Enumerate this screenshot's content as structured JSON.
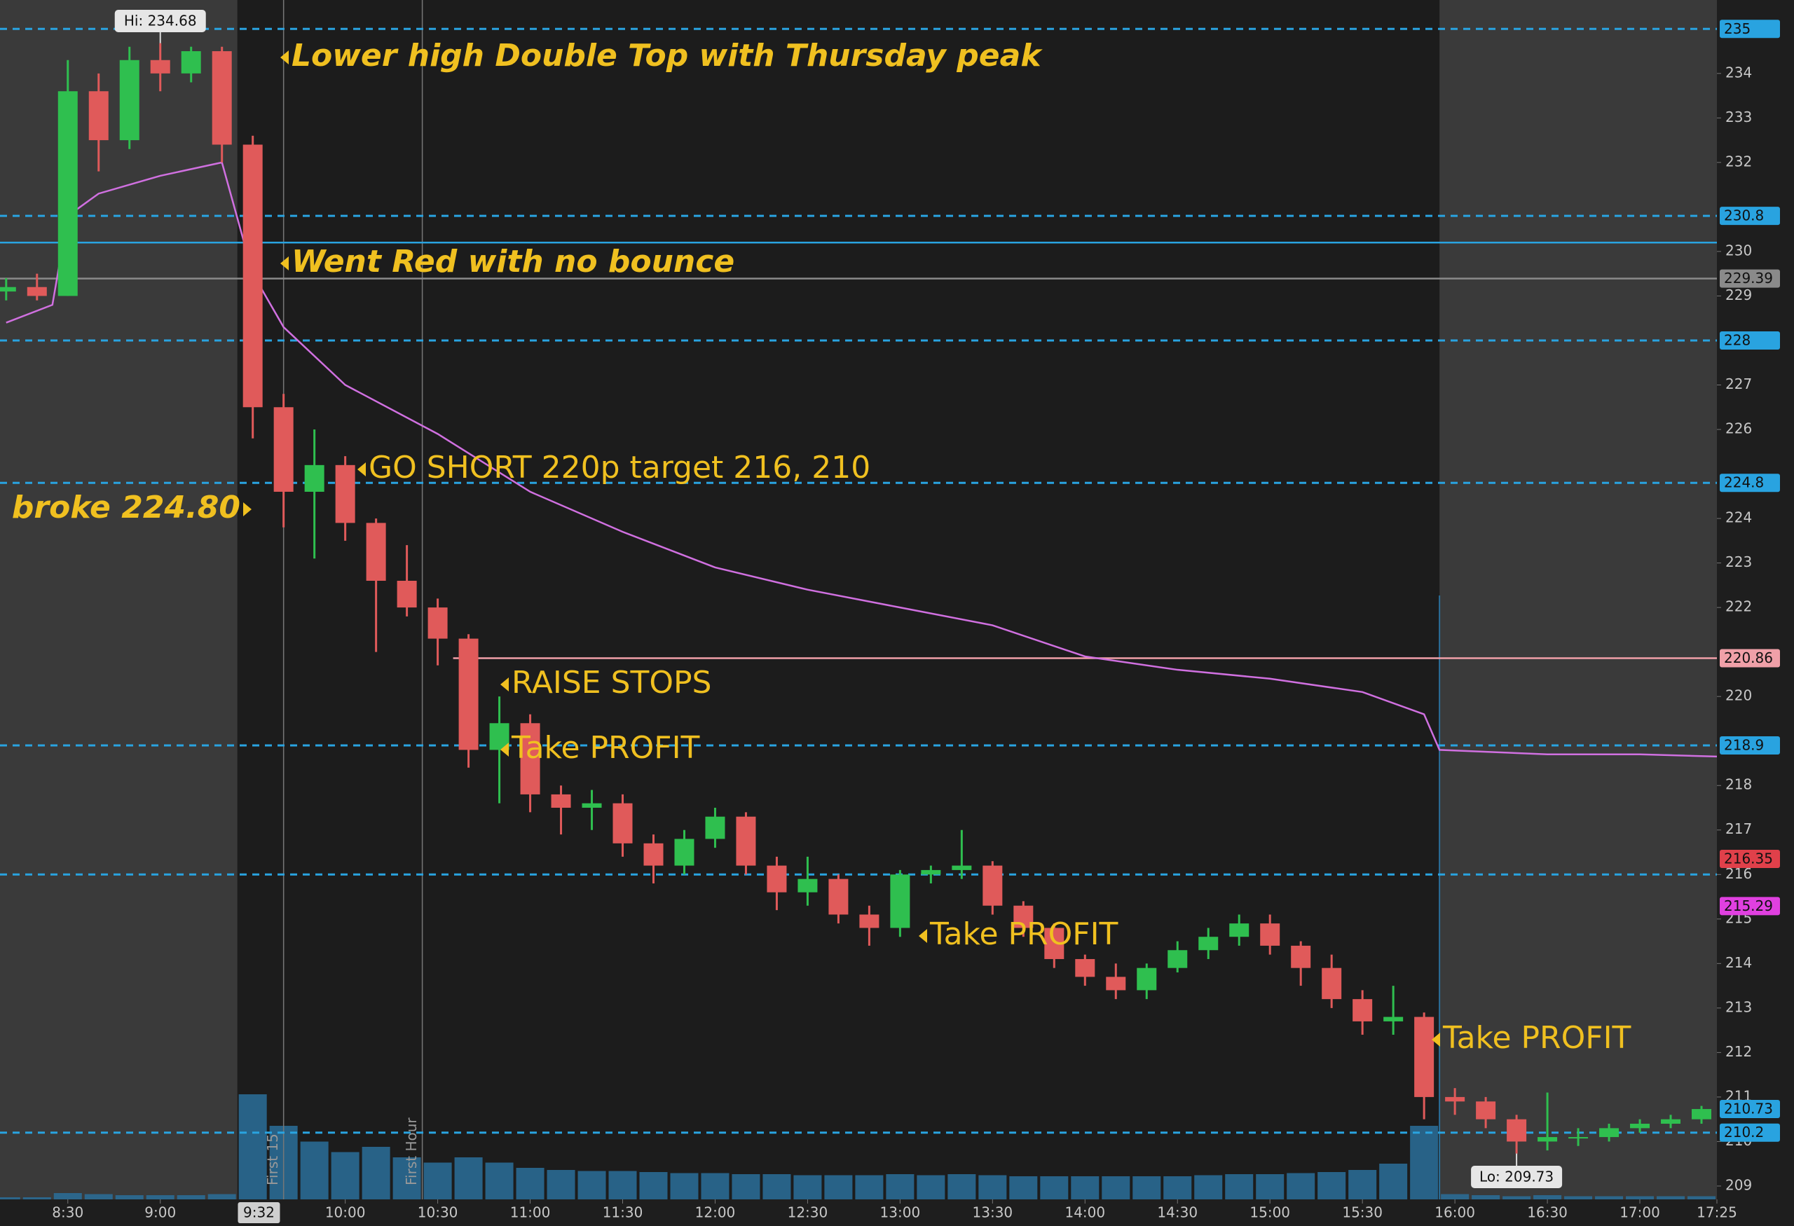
{
  "chart_data": {
    "type": "candlestick",
    "xlim": [
      "8:08",
      "17:25"
    ],
    "ylim": [
      208.7,
      235.65
    ],
    "xticks": [
      "8:30",
      "9:00",
      "10:00",
      "10:30",
      "11:00",
      "11:30",
      "12:00",
      "12:30",
      "13:00",
      "13:30",
      "14:00",
      "14:30",
      "15:00",
      "15:30",
      "16:00",
      "16:30",
      "17:00",
      "17:25"
    ],
    "yticks": [
      209,
      210,
      211,
      212,
      213,
      214,
      215,
      216,
      217,
      218,
      220,
      222,
      223,
      224,
      226,
      227,
      229,
      230,
      232,
      233,
      234
    ],
    "cursor": "9:32",
    "session": [
      "9:25",
      "15:55"
    ],
    "up_color": "#2fbf4f",
    "down_color": "#e05a5a",
    "x": [
      "8:10",
      "8:20",
      "8:30",
      "8:40",
      "8:50",
      "9:00",
      "9:10",
      "9:20",
      "9:30",
      "9:40",
      "9:50",
      "10:00",
      "10:10",
      "10:20",
      "10:30",
      "10:40",
      "10:50",
      "11:00",
      "11:10",
      "11:20",
      "11:30",
      "11:40",
      "11:50",
      "12:00",
      "12:10",
      "12:20",
      "12:30",
      "12:40",
      "12:50",
      "13:00",
      "13:10",
      "13:20",
      "13:30",
      "13:40",
      "13:50",
      "14:00",
      "14:10",
      "14:20",
      "14:30",
      "14:40",
      "14:50",
      "15:00",
      "15:10",
      "15:20",
      "15:30",
      "15:40",
      "15:50",
      "16:00",
      "16:10",
      "16:20",
      "16:30",
      "16:40",
      "16:50",
      "17:00",
      "17:10",
      "17:20"
    ],
    "open": [
      229.1,
      229.2,
      229.0,
      233.6,
      232.5,
      234.3,
      234.0,
      234.5,
      232.4,
      226.5,
      224.6,
      225.2,
      223.9,
      222.6,
      222.0,
      221.3,
      218.8,
      219.4,
      217.8,
      217.5,
      217.6,
      216.7,
      216.2,
      216.8,
      217.3,
      216.2,
      215.6,
      215.9,
      215.1,
      214.8,
      216.0,
      216.1,
      216.2,
      215.3,
      214.8,
      214.1,
      213.7,
      213.4,
      213.9,
      214.3,
      214.6,
      214.9,
      214.4,
      213.9,
      213.2,
      212.7,
      212.8,
      211.0,
      210.9,
      210.5,
      210.0,
      210.1,
      210.1,
      210.3,
      210.4,
      210.5
    ],
    "high": [
      229.4,
      229.5,
      234.3,
      234.0,
      234.6,
      234.68,
      234.6,
      234.6,
      232.6,
      226.8,
      226.0,
      225.4,
      224.0,
      223.4,
      222.2,
      221.4,
      220.0,
      219.6,
      218.0,
      217.9,
      217.8,
      216.9,
      217.0,
      217.5,
      217.4,
      216.4,
      216.4,
      216.0,
      215.3,
      216.1,
      216.2,
      217.0,
      216.3,
      215.4,
      214.9,
      214.2,
      214.0,
      214.0,
      214.5,
      214.8,
      215.1,
      215.1,
      214.5,
      214.2,
      213.4,
      213.5,
      212.9,
      211.2,
      211.0,
      210.6,
      211.1,
      210.3,
      210.4,
      210.5,
      210.6,
      210.8
    ],
    "low": [
      228.9,
      228.9,
      229.0,
      231.8,
      232.3,
      233.6,
      233.8,
      232.0,
      225.8,
      223.8,
      223.1,
      223.5,
      221.0,
      221.8,
      220.7,
      218.4,
      217.6,
      217.4,
      216.9,
      217.0,
      216.4,
      215.8,
      216.0,
      216.6,
      216.0,
      215.2,
      215.3,
      214.9,
      214.4,
      214.6,
      215.8,
      215.9,
      215.1,
      214.6,
      213.9,
      213.5,
      213.2,
      213.2,
      213.8,
      214.1,
      214.4,
      214.2,
      213.5,
      213.0,
      212.4,
      212.4,
      210.5,
      210.6,
      210.3,
      209.73,
      209.8,
      209.9,
      210.0,
      210.2,
      210.3,
      210.4
    ],
    "close": [
      229.2,
      229.0,
      233.6,
      232.5,
      234.3,
      234.0,
      234.5,
      232.4,
      226.5,
      224.6,
      225.2,
      223.9,
      222.6,
      222.0,
      221.3,
      218.8,
      219.4,
      217.8,
      217.5,
      217.6,
      216.7,
      216.2,
      216.8,
      217.3,
      216.2,
      215.6,
      215.9,
      215.1,
      214.8,
      216.0,
      216.1,
      216.2,
      215.3,
      214.8,
      214.1,
      213.7,
      213.4,
      213.9,
      214.3,
      214.6,
      214.9,
      214.4,
      213.9,
      213.2,
      212.7,
      212.8,
      211.0,
      210.9,
      210.5,
      210.0,
      210.1,
      210.1,
      210.3,
      210.4,
      210.5,
      210.73
    ],
    "volume": [
      2,
      2,
      6,
      5,
      4,
      4,
      4,
      5,
      100,
      70,
      55,
      45,
      50,
      40,
      35,
      40,
      35,
      30,
      28,
      27,
      27,
      26,
      25,
      25,
      24,
      24,
      23,
      23,
      23,
      24,
      23,
      24,
      23,
      22,
      22,
      22,
      22,
      22,
      22,
      23,
      24,
      24,
      25,
      26,
      28,
      34,
      70,
      5,
      4,
      3,
      4,
      3,
      3,
      3,
      3,
      3
    ],
    "volume_ylim": [
      0,
      110
    ],
    "volume_color": "#2a6f9a",
    "vwap": {
      "color": "#d070e0",
      "x": [
        "8:10",
        "8:25",
        "8:30",
        "8:40",
        "9:00",
        "9:20",
        "9:30",
        "9:40",
        "10:00",
        "10:30",
        "11:00",
        "11:30",
        "12:00",
        "12:30",
        "13:00",
        "13:30",
        "14:00",
        "14:30",
        "15:00",
        "15:30",
        "15:50",
        "15:55",
        "16:30",
        "17:00",
        "17:25"
      ],
      "values": [
        228.4,
        228.8,
        230.8,
        231.3,
        231.7,
        232.0,
        229.5,
        228.3,
        227.0,
        225.9,
        224.6,
        223.7,
        222.9,
        222.4,
        222.0,
        221.6,
        220.9,
        220.6,
        220.4,
        220.1,
        219.6,
        218.8,
        218.7,
        218.7,
        218.65
      ]
    },
    "levels": [
      {
        "value": 235,
        "color": "#29a3e0",
        "line": "dashed",
        "box": true
      },
      {
        "value": 230.8,
        "color": "#29a3e0",
        "line": "dashed",
        "box": true
      },
      {
        "value": 230.2,
        "color": "#29a3e0",
        "line": "solid",
        "box": false
      },
      {
        "value": 229.39,
        "color": "#8a8a8a",
        "line": "solid",
        "box": true
      },
      {
        "value": 228,
        "color": "#29a3e0",
        "line": "dashed",
        "box": true
      },
      {
        "value": 224.8,
        "color": "#29a3e0",
        "line": "dashed",
        "box": true
      },
      {
        "value": 220.86,
        "color": "#f0a0a8",
        "line": "solid",
        "box": true,
        "from": "10:35"
      },
      {
        "value": 218.9,
        "color": "#29a3e0",
        "line": "dashed",
        "box": true
      },
      {
        "value": 216,
        "color": "#29a3e0",
        "line": "dashed",
        "box": false
      },
      {
        "value": 216.35,
        "color": "#e0404a",
        "line": "none",
        "box": true
      },
      {
        "value": 215.29,
        "color": "#e040e0",
        "line": "none",
        "box": true
      },
      {
        "value": 210.73,
        "color": "#29a3e0",
        "line": "none",
        "box": true
      },
      {
        "value": 210.2,
        "color": "#29a3e0",
        "line": "dashed",
        "box": true
      }
    ],
    "markers": [
      {
        "x": "9:40",
        "label": "First 15"
      },
      {
        "x": "10:25",
        "label": "First Hour"
      }
    ],
    "hi_label": {
      "value": 234.68,
      "label": "Hi: 234.68",
      "x": "9:00"
    },
    "lo_label": {
      "value": 209.73,
      "label": "Lo: 209.73",
      "x": "16:20"
    },
    "annotations": [
      {
        "text": "Lower high Double Top with Thursday peak",
        "style": "bold-italic"
      },
      {
        "text": "Went Red with no bounce",
        "style": "bold-italic"
      },
      {
        "text": "GO SHORT 220p target 216, 210",
        "style": "normal"
      },
      {
        "text": "broke 224.80",
        "style": "bold-italic"
      },
      {
        "text": "RAISE STOPS",
        "style": "normal"
      },
      {
        "text": "Take PROFIT",
        "style": "normal"
      },
      {
        "text": "Take PROFIT",
        "style": "normal"
      },
      {
        "text": "Take PROFIT",
        "style": "normal"
      }
    ]
  }
}
